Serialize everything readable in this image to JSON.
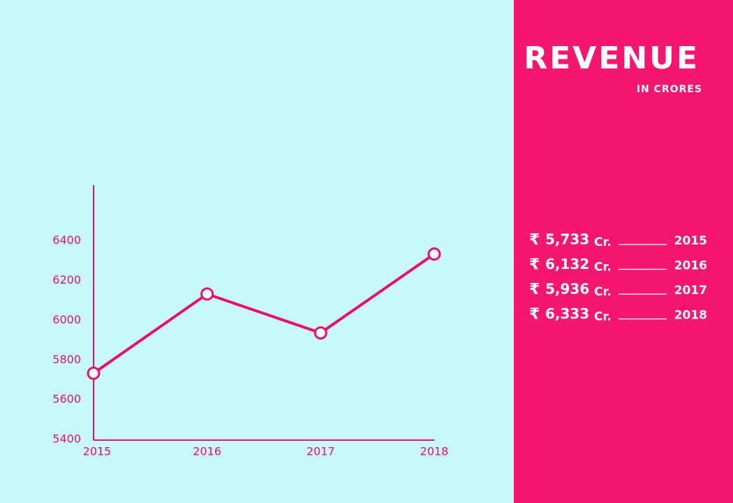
{
  "chart_data": {
    "type": "line",
    "title": "REVENUE",
    "subtitle": "IN CRORES",
    "categories": [
      "2015",
      "2016",
      "2017",
      "2018"
    ],
    "values": [
      5733,
      6132,
      5936,
      6333
    ],
    "value_labels": [
      "5,733",
      "6,132",
      "5,936",
      "6,333"
    ],
    "currency_symbol": "₹",
    "unit_label": "Cr.",
    "color": "#e8106a",
    "ylim": [
      5400,
      6680
    ],
    "yticks": [
      5400,
      5600,
      5800,
      6000,
      6200,
      6400
    ]
  }
}
